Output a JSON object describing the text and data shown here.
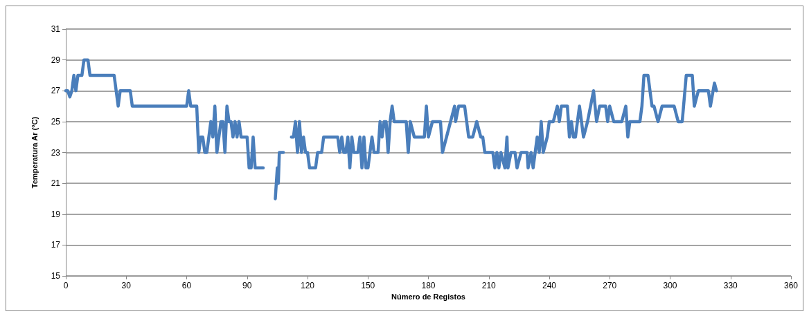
{
  "chart_data": {
    "type": "line",
    "xlabel": "Número de Registos",
    "ylabel": "Temperatura Ar (°C)",
    "xlim": [
      0,
      360
    ],
    "xticks": [
      0,
      30,
      60,
      90,
      120,
      150,
      180,
      210,
      240,
      270,
      300,
      330,
      360
    ],
    "ylim": [
      15,
      31
    ],
    "yticks": [
      15,
      17,
      19,
      21,
      23,
      25,
      27,
      29,
      31
    ],
    "grid": "y",
    "marker": "none",
    "line_style": "solid",
    "series": [
      {
        "color": "#4a7ebb",
        "x": [
          0,
          1,
          2,
          3,
          4,
          5,
          6,
          8,
          9,
          11,
          12,
          14,
          20,
          24,
          25,
          26,
          27,
          29,
          32,
          33,
          60,
          61,
          62,
          65,
          66,
          67,
          68,
          69,
          70,
          72,
          73,
          74,
          75,
          76,
          77,
          78,
          79,
          80,
          81,
          82,
          83,
          84,
          85,
          86,
          87,
          90,
          91,
          92,
          93,
          94,
          95,
          98,
          100,
          104,
          105,
          105.5,
          106,
          108,
          110,
          112,
          113,
          114,
          115,
          116,
          117,
          118,
          119,
          120,
          121,
          124,
          125,
          127,
          128,
          135,
          136,
          137,
          138,
          139,
          140,
          141,
          142,
          143,
          145,
          146,
          147,
          148,
          149,
          150,
          151,
          152,
          153,
          155,
          156,
          157,
          158,
          159,
          160,
          161,
          162,
          163,
          164,
          169,
          170,
          171,
          173,
          174,
          178,
          179,
          180,
          182,
          186,
          187,
          189,
          191,
          193,
          193.5,
          195,
          198,
          200,
          202,
          204,
          206,
          207,
          208,
          212,
          213,
          214,
          215,
          216,
          218,
          219,
          219.5,
          221,
          223,
          224,
          226,
          229,
          229.5,
          231,
          232,
          234,
          235,
          236,
          237,
          239,
          240,
          242,
          244,
          245,
          246,
          249,
          250,
          251,
          252,
          253,
          255,
          256,
          257,
          259,
          262,
          263.5,
          265,
          268,
          269,
          270,
          272,
          276,
          278,
          279,
          280,
          285,
          286,
          287,
          289,
          291,
          292,
          294,
          296,
          302,
          304,
          306,
          308,
          311,
          312,
          314,
          319,
          320,
          322,
          323
        ],
        "values": [
          27,
          27,
          26.6,
          27,
          28,
          27,
          28,
          28,
          29,
          29,
          28,
          28,
          28,
          28,
          27,
          26,
          27,
          27,
          27,
          26,
          26,
          27,
          26,
          26,
          23,
          24,
          24,
          23,
          23,
          25,
          24,
          26,
          23,
          24,
          25,
          25,
          23,
          26,
          25,
          25,
          24,
          25,
          24,
          25,
          24,
          24,
          22,
          22,
          24,
          22,
          22,
          22,
          null,
          20,
          22,
          21,
          23,
          23,
          null,
          24,
          24,
          25,
          23,
          25,
          23,
          24,
          23,
          23,
          22,
          22,
          23,
          23,
          24,
          24,
          23,
          24,
          23,
          23,
          24,
          22,
          24,
          23,
          23,
          24,
          22,
          24,
          22,
          22,
          23,
          24,
          23,
          23,
          25,
          24,
          25,
          25,
          23,
          25,
          26,
          25,
          25,
          25,
          23,
          25,
          24,
          24,
          24,
          26,
          24,
          25,
          25,
          23,
          24,
          25,
          26,
          25,
          26,
          26,
          24,
          24,
          25,
          24,
          24,
          23,
          23,
          22,
          23,
          22,
          23,
          22,
          24,
          22,
          23,
          23,
          22,
          23,
          23,
          22,
          23,
          22,
          24,
          23,
          25,
          23,
          24,
          25,
          25,
          26,
          25,
          26,
          26,
          24,
          25,
          24,
          24,
          26,
          25,
          24,
          25,
          27,
          25,
          26,
          26,
          25,
          26,
          25,
          25,
          26,
          24,
          25,
          25,
          26,
          28,
          28,
          26,
          26,
          25,
          26,
          26,
          25,
          25,
          28,
          28,
          26,
          27,
          27,
          26,
          27.5,
          27
        ]
      }
    ]
  }
}
